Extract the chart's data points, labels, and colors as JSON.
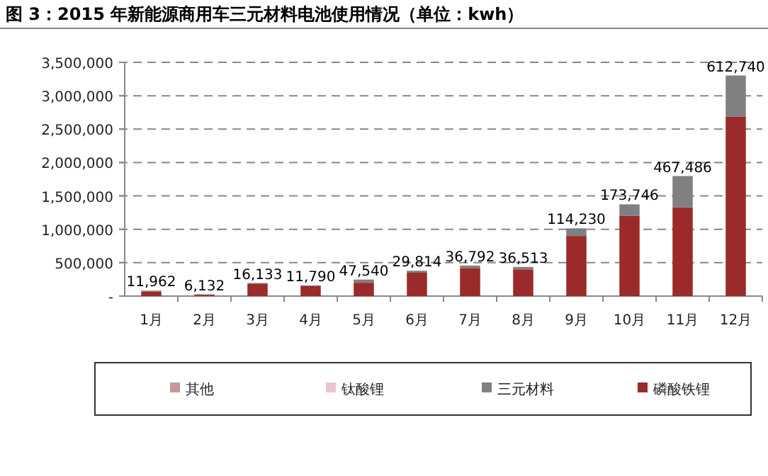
{
  "chart_data": {
    "type": "bar",
    "title": "图 3：2015 年新能源商用车三元材料电池使用情况（单位：kwh）",
    "stacked": true,
    "grid": "y",
    "legend": "bottom",
    "categories": [
      "1月",
      "2月",
      "3月",
      "4月",
      "5月",
      "6月",
      "7月",
      "8月",
      "9月",
      "10月",
      "11月",
      "12月"
    ],
    "ylim": [
      0,
      3500000
    ],
    "yticks": [
      {
        "value": 0,
        "label": "-"
      },
      {
        "value": 500000,
        "label": "500,000"
      },
      {
        "value": 1000000,
        "label": "1,000,000"
      },
      {
        "value": 1500000,
        "label": "1,500,000"
      },
      {
        "value": 2000000,
        "label": "2,000,000"
      },
      {
        "value": 2500000,
        "label": "2,500,000"
      },
      {
        "value": 3000000,
        "label": "3,000,000"
      },
      {
        "value": 3500000,
        "label": "3,500,000"
      }
    ],
    "series": [
      {
        "name": "磷酸铁锂",
        "color": "#9b2a2a",
        "values": [
          70000,
          20000,
          180000,
          150000,
          200000,
          350000,
          420000,
          400000,
          900000,
          1200000,
          1330000,
          2690000
        ]
      },
      {
        "name": "三元材料",
        "color": "#808080",
        "values": [
          11962,
          6132,
          16133,
          11790,
          47540,
          29814,
          36792,
          36513,
          114230,
          173746,
          467486,
          612740
        ],
        "value_labels": [
          "11,962",
          "6,132",
          "16,133",
          "11,790",
          "47,540",
          "29,814",
          "36,792",
          "36,513",
          "114,230",
          "173,746",
          "467,486",
          "612,740"
        ]
      },
      {
        "name": "钛酸锂",
        "color": "#e8c6cc",
        "values": [
          null,
          null,
          null,
          null,
          null,
          null,
          null,
          null,
          null,
          null,
          null,
          null
        ]
      },
      {
        "name": "其他",
        "color": "#c49a9a",
        "values": [
          null,
          null,
          null,
          null,
          null,
          null,
          null,
          null,
          null,
          null,
          null,
          null
        ]
      }
    ]
  }
}
